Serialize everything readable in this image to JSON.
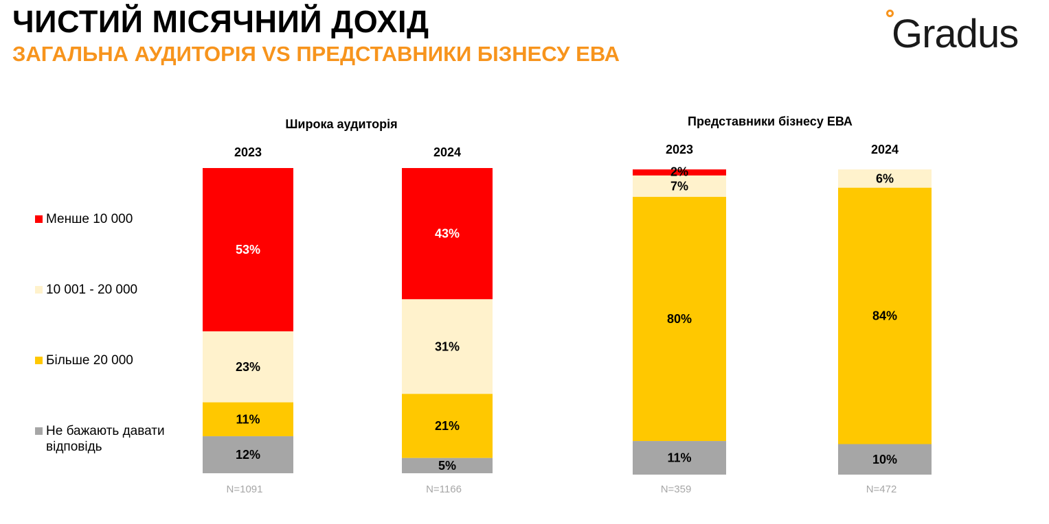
{
  "title": "ЧИСТИЙ МІСЯЧНИЙ ДОХІД",
  "subtitle": "ЗАГАЛЬНА АУДИТОРІЯ VS ПРЕДСТАВНИКИ БІЗНЕСУ ЕВА",
  "logo_text": "Gradus",
  "groups": [
    {
      "title": "Широка аудиторія"
    },
    {
      "title": "Представники бізнесу ЕВА"
    }
  ],
  "legend": [
    {
      "label": "Менше 10 000",
      "color": "#FF0000"
    },
    {
      "label": "10 001 - 20 000",
      "color": "#FFF2CC"
    },
    {
      "label": "Більше 20 000",
      "color": "#FFC800"
    },
    {
      "label": "Не бажають давати відповідь",
      "color": "#A6A6A6"
    }
  ],
  "chart_data": {
    "type": "bar",
    "stacked": true,
    "percent": true,
    "groups": [
      "Широка аудиторія",
      "Широка аудиторія",
      "Представники бізнесу ЕВА",
      "Представники бізнесу ЕВА"
    ],
    "categories": [
      "2023",
      "2024",
      "2023",
      "2024"
    ],
    "sample_sizes": [
      "N=1091",
      "N=1166",
      "N=359",
      "N=472"
    ],
    "series": [
      {
        "name": "Менше 10 000",
        "color": "#FF0000",
        "label_color": "#FFFFFF",
        "values": [
          53,
          43,
          2,
          0
        ]
      },
      {
        "name": "10 001 - 20 000",
        "color": "#FFF2CC",
        "label_color": "#000000",
        "values": [
          23,
          31,
          7,
          6
        ]
      },
      {
        "name": "Більше 20 000",
        "color": "#FFC800",
        "label_color": "#000000",
        "values": [
          11,
          21,
          80,
          84
        ]
      },
      {
        "name": "Не бажають давати відповідь",
        "color": "#A6A6A6",
        "label_color": "#000000",
        "values": [
          12,
          5,
          11,
          10
        ]
      }
    ],
    "value_labels": [
      [
        "53%",
        "43%",
        "2%",
        ""
      ],
      [
        "23%",
        "31%",
        "7%",
        "6%"
      ],
      [
        "11%",
        "21%",
        "80%",
        "84%"
      ],
      [
        "12%",
        "5%",
        "11%",
        "10%"
      ]
    ],
    "legend_position": "left"
  }
}
